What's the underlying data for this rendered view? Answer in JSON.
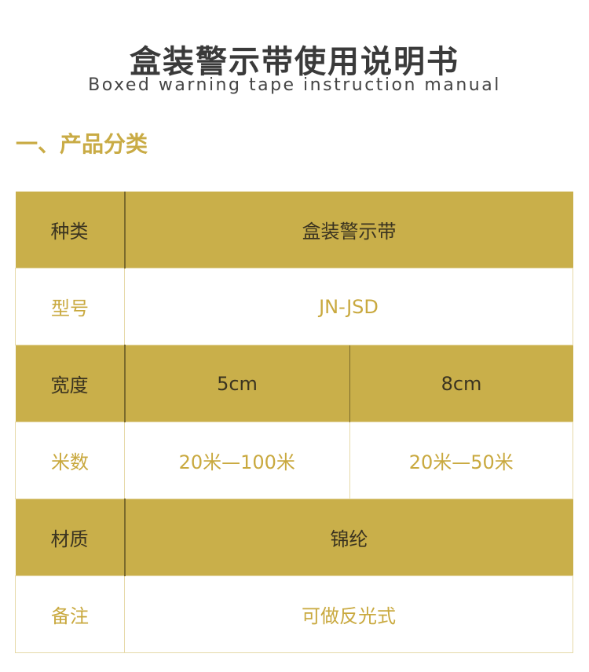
{
  "title": "盒装警示带使用说明书",
  "subtitle": "Boxed warning tape instruction manual",
  "section": "一、产品分类",
  "rows": [
    {
      "label": "种类",
      "values": [
        "盒装警示带"
      ]
    },
    {
      "label": "型号",
      "values": [
        "JN-JSD"
      ]
    },
    {
      "label": "宽度",
      "values": [
        "5cm",
        "8cm"
      ]
    },
    {
      "label": "米数",
      "values": [
        "20米—100米",
        "20米—50米"
      ]
    },
    {
      "label": "材质",
      "values": [
        "锦纶"
      ]
    },
    {
      "label": "备注",
      "values": [
        "可做反光式"
      ]
    }
  ],
  "colors": {
    "gold": "#c9af4a",
    "text_gold": "#c9a93f",
    "text_dark": "#3a3320"
  }
}
